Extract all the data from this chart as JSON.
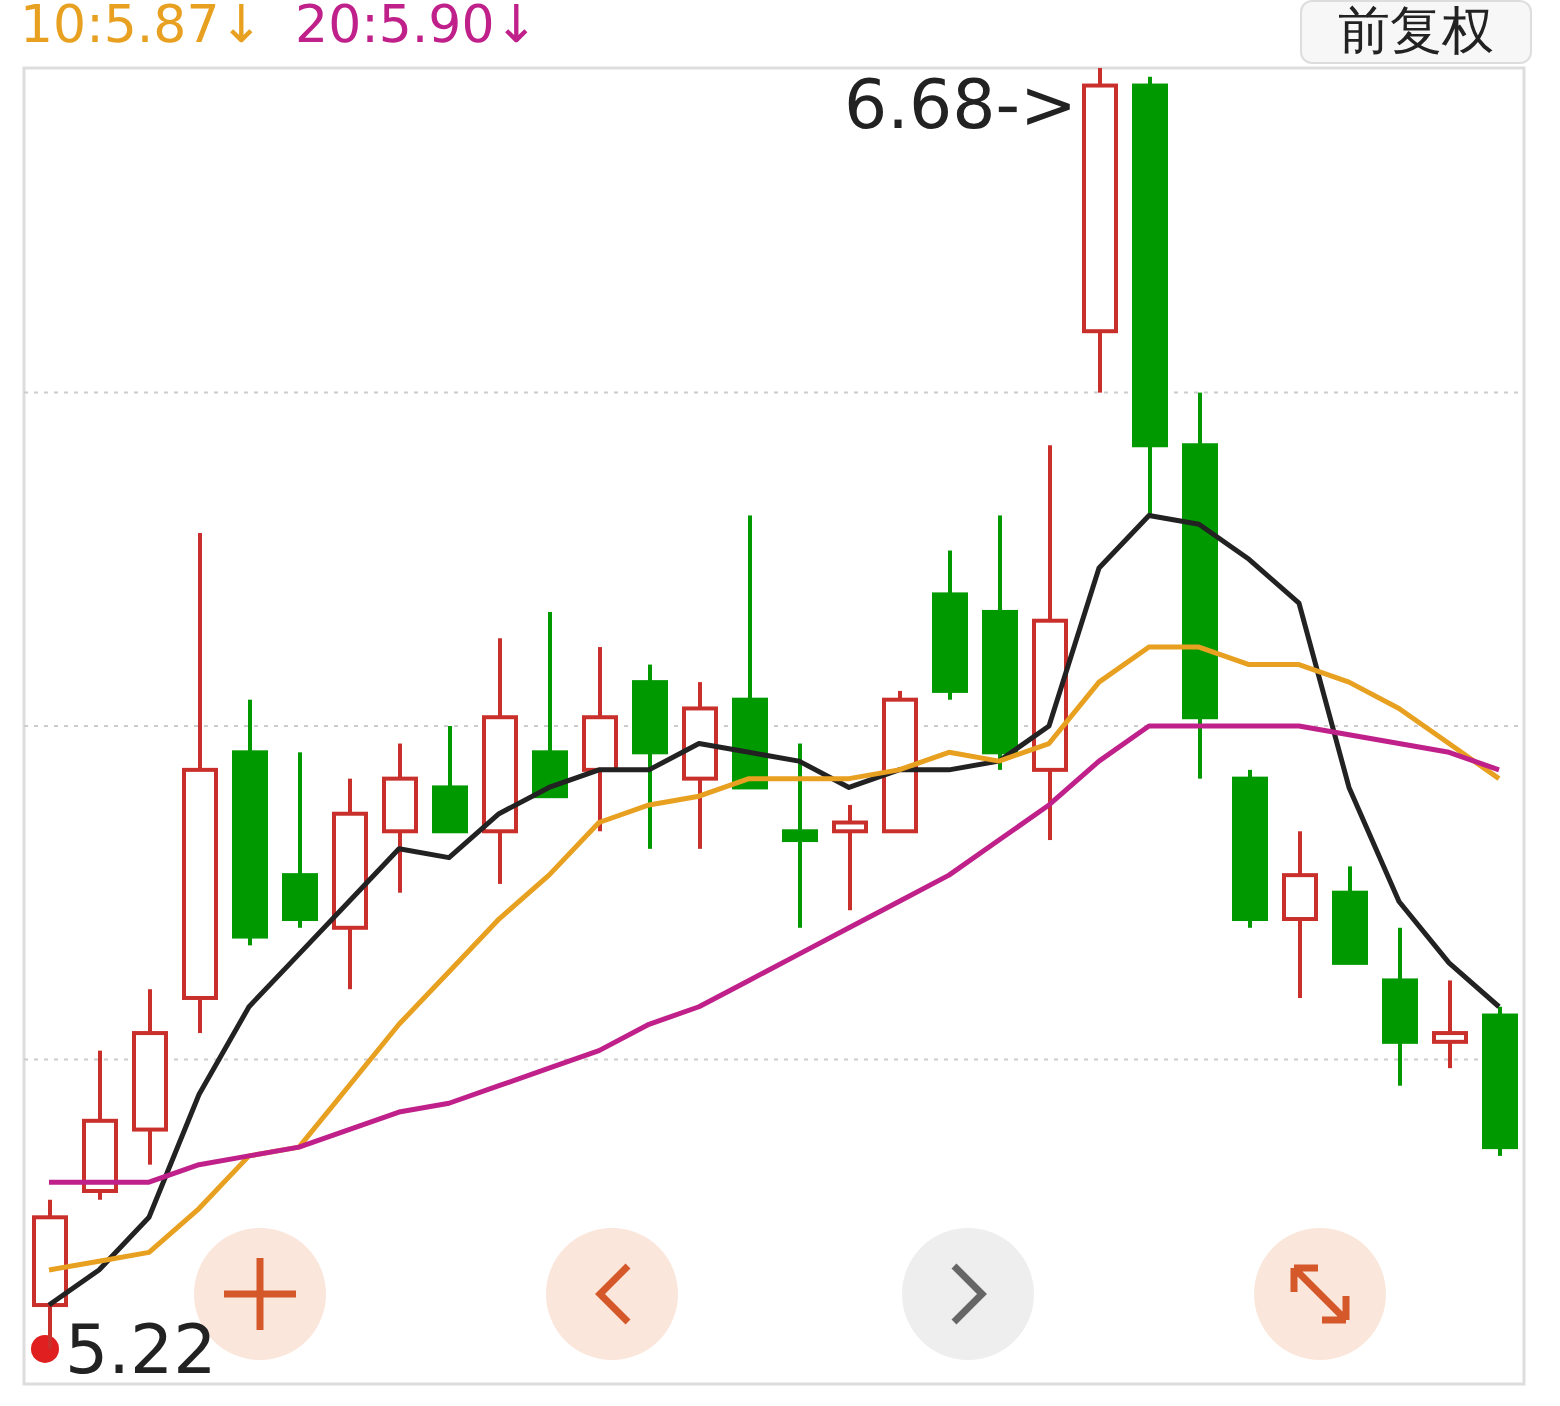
{
  "chart_data": {
    "type": "candlestick",
    "categories": [
      null,
      null,
      null,
      null,
      null,
      null,
      null,
      null,
      null,
      null,
      null,
      null,
      null,
      null,
      null,
      null,
      null,
      null,
      null,
      null,
      null,
      null,
      null,
      null,
      null,
      null,
      null,
      null,
      null,
      null
    ],
    "ohlc": [
      [
        5.27,
        5.39,
        5.22,
        5.37
      ],
      [
        5.4,
        5.56,
        5.39,
        5.48
      ],
      [
        5.47,
        5.63,
        5.43,
        5.58
      ],
      [
        5.62,
        6.15,
        5.58,
        5.88
      ],
      [
        5.9,
        5.96,
        5.68,
        5.69
      ],
      [
        5.76,
        5.9,
        5.7,
        5.71
      ],
      [
        5.7,
        5.87,
        5.63,
        5.83
      ],
      [
        5.81,
        5.91,
        5.74,
        5.87
      ],
      [
        5.86,
        5.93,
        5.81,
        5.81
      ],
      [
        5.81,
        6.03,
        5.75,
        5.94
      ],
      [
        5.9,
        6.06,
        5.85,
        5.85
      ],
      [
        5.88,
        6.02,
        5.81,
        5.94
      ],
      [
        5.98,
        6.0,
        5.79,
        5.9
      ],
      [
        5.87,
        5.98,
        5.79,
        5.95
      ],
      [
        5.96,
        6.17,
        5.86,
        5.86
      ],
      [
        5.81,
        5.91,
        5.7,
        5.8
      ],
      [
        5.81,
        5.84,
        5.72,
        5.82
      ],
      [
        5.81,
        5.97,
        5.81,
        5.96
      ],
      [
        6.08,
        6.13,
        5.96,
        5.97
      ],
      [
        6.06,
        6.17,
        5.88,
        5.9
      ],
      [
        5.88,
        6.25,
        5.8,
        6.05
      ],
      [
        6.38,
        6.68,
        6.31,
        6.66
      ],
      [
        6.66,
        6.67,
        6.17,
        6.25
      ],
      [
        6.25,
        6.31,
        5.87,
        5.94
      ],
      [
        5.87,
        5.88,
        5.7,
        5.71
      ],
      [
        5.71,
        5.81,
        5.62,
        5.76
      ],
      [
        5.74,
        5.77,
        5.66,
        5.66
      ],
      [
        5.64,
        5.7,
        5.52,
        5.57
      ],
      [
        5.57,
        5.64,
        5.54,
        5.58
      ],
      [
        5.6,
        5.61,
        5.44,
        5.45
      ]
    ],
    "colors": [
      "#c9302c",
      "#c9302c",
      "#c9302c",
      "#c9302c",
      "#009900",
      "#009900",
      "#c9302c",
      "#c9302c",
      "#009900",
      "#c9302c",
      "#009900",
      "#c9302c",
      "#009900",
      "#c9302c",
      "#009900",
      "#009900",
      "#c9302c",
      "#c9302c",
      "#009900",
      "#009900",
      "#c9302c",
      "#c9302c",
      "#009900",
      "#009900",
      "#009900",
      "#c9302c",
      "#009900",
      "#009900",
      "#c9302c",
      "#009900"
    ],
    "series": [
      {
        "type": "line",
        "color": "#222222",
        "values": [
          5.27,
          5.31,
          5.37,
          5.51,
          5.61,
          5.67,
          5.73,
          5.79,
          5.78,
          5.83,
          5.86,
          5.88,
          5.88,
          5.91,
          5.9,
          5.89,
          5.86,
          5.88,
          5.88,
          5.89,
          5.93,
          6.11,
          6.17,
          6.16,
          6.12,
          6.07,
          5.86,
          5.73,
          5.66,
          5.61
        ]
      },
      {
        "type": "line",
        "name": "10:5.87↓",
        "color": "#e8a020",
        "values": [
          5.31,
          5.32,
          5.33,
          5.38,
          5.44,
          5.45,
          5.52,
          5.59,
          5.65,
          5.71,
          5.76,
          5.82,
          5.84,
          5.85,
          5.87,
          5.87,
          5.87,
          5.88,
          5.9,
          5.89,
          5.91,
          5.98,
          6.02,
          6.02,
          6.0,
          6.0,
          5.98,
          5.95,
          5.91,
          5.87
        ]
      },
      {
        "type": "line",
        "name": "20:5.90↓",
        "color": "#c0208a",
        "values": [
          5.41,
          5.41,
          5.41,
          5.43,
          5.44,
          5.45,
          5.47,
          5.49,
          5.5,
          5.52,
          5.54,
          5.56,
          5.59,
          5.61,
          5.64,
          5.67,
          5.7,
          5.73,
          5.76,
          5.8,
          5.84,
          5.89,
          5.93,
          5.93,
          5.93,
          5.93,
          5.92,
          5.91,
          5.9,
          5.88
        ]
      }
    ],
    "ylim": [
      5.18,
      6.68
    ],
    "yticks": [
      {
        "value": 6.31,
        "label": null
      },
      {
        "value": 5.93,
        "label": null
      },
      {
        "value": 5.55,
        "label": null
      }
    ],
    "grid": "y",
    "tick_labels": false,
    "legend": "top left",
    "annotations": [
      "6.68->",
      "5.22",
      "前复权"
    ]
  }
}
